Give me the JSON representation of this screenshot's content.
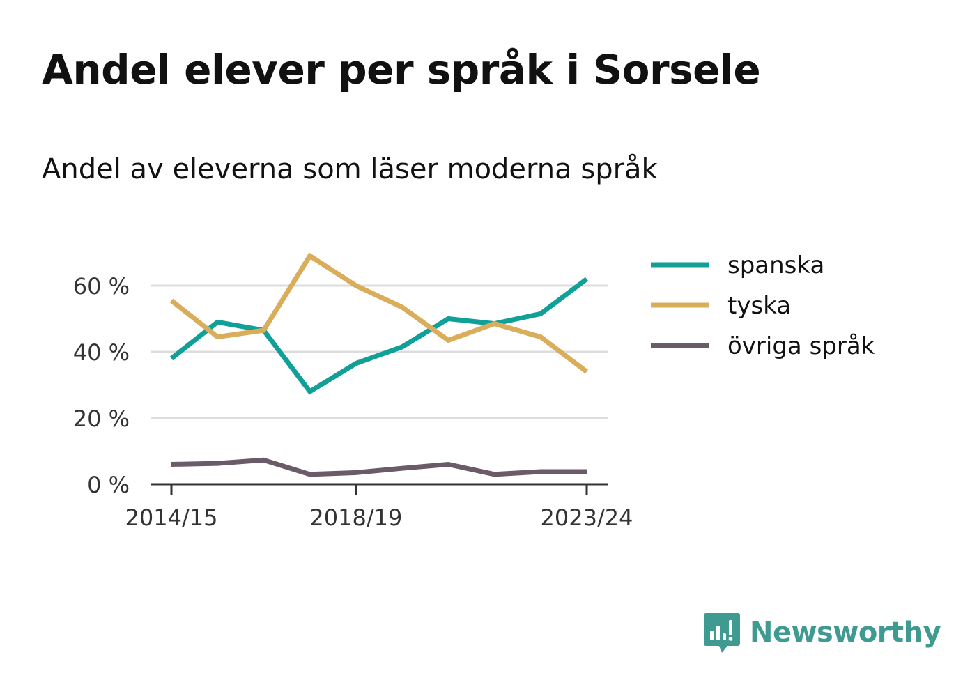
{
  "title": "Andel elever per språk i Sorsele",
  "subtitle": "Andel av eleverna som läser moderna språk",
  "brand": {
    "name": "Newsworthy",
    "color": "#3f9a92",
    "icon": "bar-chart-speech-bubble-icon"
  },
  "chart_data": {
    "type": "line",
    "x": [
      "2014/15",
      "2015/16",
      "2016/17",
      "2017/18",
      "2018/19",
      "2019/20",
      "2020/21",
      "2021/22",
      "2022/23",
      "2023/24"
    ],
    "x_tick_labels": [
      "2014/15",
      "2018/19",
      "2023/24"
    ],
    "y_ticks": [
      0,
      20,
      40,
      60
    ],
    "y_tick_labels": [
      "0 %",
      "20 %",
      "40 %",
      "60 %"
    ],
    "ylim": [
      0,
      70
    ],
    "grid": true,
    "legend_position": "right",
    "series": [
      {
        "name": "spanska",
        "color": "#11a098",
        "values": [
          38,
          49,
          46.5,
          28,
          36.5,
          41.5,
          50,
          48.5,
          51.5,
          62
        ]
      },
      {
        "name": "tyska",
        "color": "#d9ad5a",
        "values": [
          55.5,
          44.5,
          46.5,
          69,
          60,
          53.5,
          43.5,
          48.5,
          44.5,
          34
        ]
      },
      {
        "name": "övriga språk",
        "color": "#6b5a67",
        "values": [
          6,
          6.3,
          7.3,
          3,
          3.5,
          4.8,
          6,
          3,
          3.8,
          3.8
        ]
      }
    ]
  }
}
